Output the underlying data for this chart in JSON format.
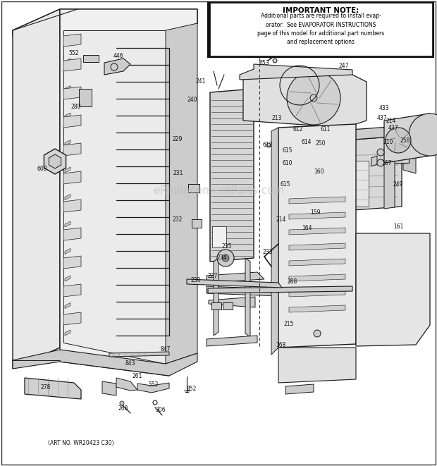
{
  "bg_color": "#ffffff",
  "art_no": "(ART NO. WR20423 C30)",
  "note_box": {
    "title": "IMPORTANT NOTE:",
    "body": "Additional parts are required to install evap-\norator.  See EVAPORATOR INSTRUCTIONS\npage of this model for additional part numbers\nand replacement options"
  },
  "watermark": "eReplacementParts.com",
  "line_color": "#1a1a1a",
  "fill_light": "#e8e8e8",
  "fill_mid": "#cccccc",
  "fill_dark": "#aaaaaa"
}
